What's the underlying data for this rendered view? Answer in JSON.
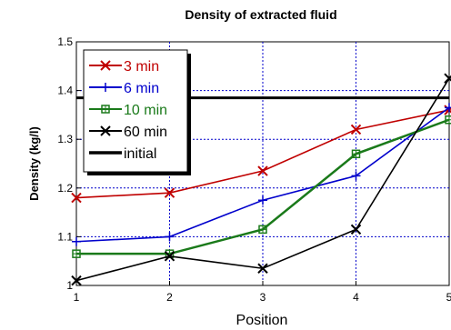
{
  "chart_data": {
    "type": "line",
    "title": "Density of extracted fluid",
    "xlabel": "Position",
    "ylabel": "Density (kg/l)",
    "x": [
      1,
      2,
      3,
      4,
      5
    ],
    "xlim": [
      1,
      5
    ],
    "ylim": [
      1,
      1.5
    ],
    "x_ticks": [
      "1",
      "2",
      "3",
      "4",
      "5"
    ],
    "y_ticks": [
      "1",
      "1.1",
      "1.2",
      "1.3",
      "1.4",
      "1.5"
    ],
    "y_tick_values": [
      1,
      1.1,
      1.2,
      1.3,
      1.4,
      1.5
    ],
    "grid": true,
    "legend_position": "top-left",
    "series": [
      {
        "name": "3 min",
        "color": "#c00000",
        "marker": "x",
        "values": [
          1.18,
          1.19,
          1.235,
          1.32,
          1.36
        ]
      },
      {
        "name": "6 min",
        "color": "#0000cc",
        "marker": "plus",
        "values": [
          1.09,
          1.1,
          1.175,
          1.225,
          1.365
        ]
      },
      {
        "name": "10 min",
        "color": "#1a7a1a",
        "marker": "square",
        "values": [
          1.065,
          1.065,
          1.115,
          1.27,
          1.34
        ]
      },
      {
        "name": "60 min",
        "color": "#000000",
        "marker": "x",
        "values": [
          1.01,
          1.06,
          1.035,
          1.115,
          1.425
        ]
      }
    ],
    "reference_line": {
      "name": "initial",
      "color": "#000000",
      "value": 1.385
    }
  }
}
